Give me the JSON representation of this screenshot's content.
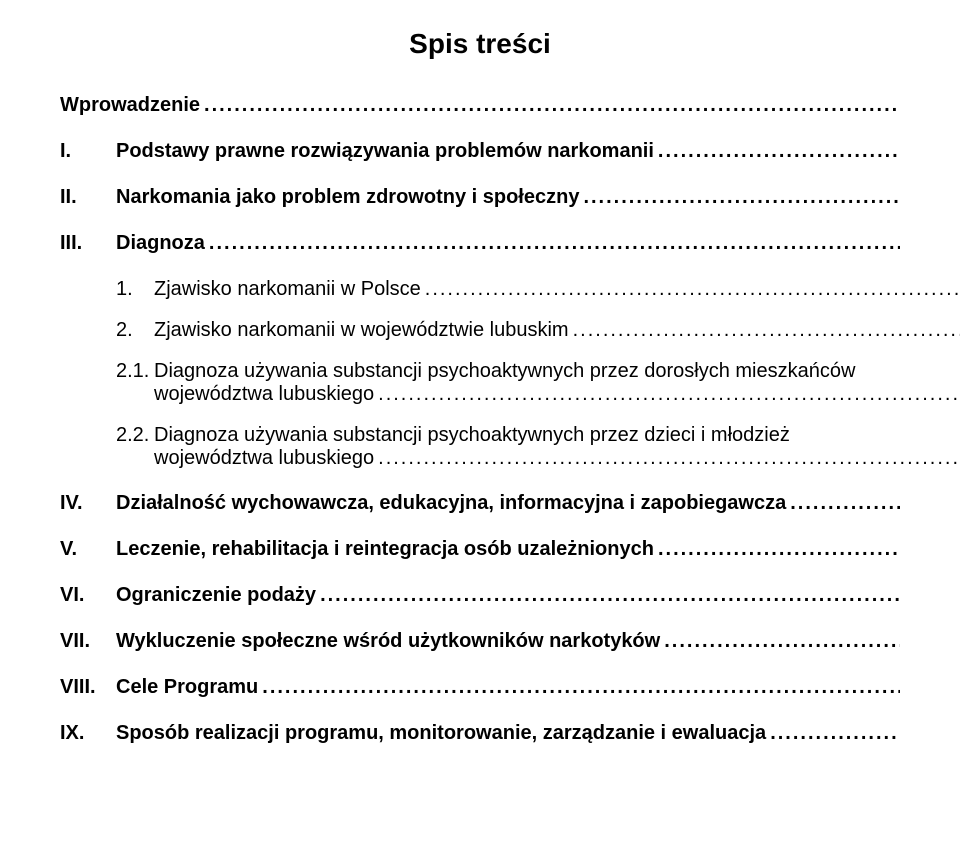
{
  "title": "Spis treści",
  "entries": [
    {
      "num": "",
      "label": "Wprowadzenie"
    },
    {
      "num": "I.",
      "label": "Podstawy prawne rozwiązywania problemów narkomanii"
    },
    {
      "num": "II.",
      "label": "Narkomania jako problem zdrowotny i społeczny"
    },
    {
      "num": "III.",
      "label": "Diagnoza"
    }
  ],
  "subs": [
    {
      "num": "1.",
      "label": "Zjawisko narkomanii w Polsce"
    },
    {
      "num": "2.",
      "label": "Zjawisko narkomanii w województwie lubuskim"
    },
    {
      "num": "2.1.",
      "l1": "Diagnoza używania substancji psychoaktywnych przez dorosłych mieszkańców",
      "l2": "województwa lubuskiego"
    },
    {
      "num": "2.2.",
      "l1": "Diagnoza używania substancji psychoaktywnych przez dzieci i młodzież",
      "l2": "województwa lubuskiego"
    }
  ],
  "entries2": [
    {
      "num": "IV.",
      "label": "Działalność wychowawcza, edukacyjna, informacyjna i zapobiegawcza"
    },
    {
      "num": "V.",
      "label": "Leczenie, rehabilitacja i reintegracja osób uzależnionych"
    },
    {
      "num": "VI.",
      "label": "Ograniczenie podaży"
    },
    {
      "num": "VII.",
      "label": "Wykluczenie społeczne wśród użytkowników narkotyków"
    },
    {
      "num": "VIII.",
      "label": "Cele Programu"
    },
    {
      "num": "IX.",
      "label": "Sposób realizacji programu, monitorowanie, zarządzanie i ewaluacja"
    }
  ],
  "dots": "............................................................................................................................................................................................................"
}
